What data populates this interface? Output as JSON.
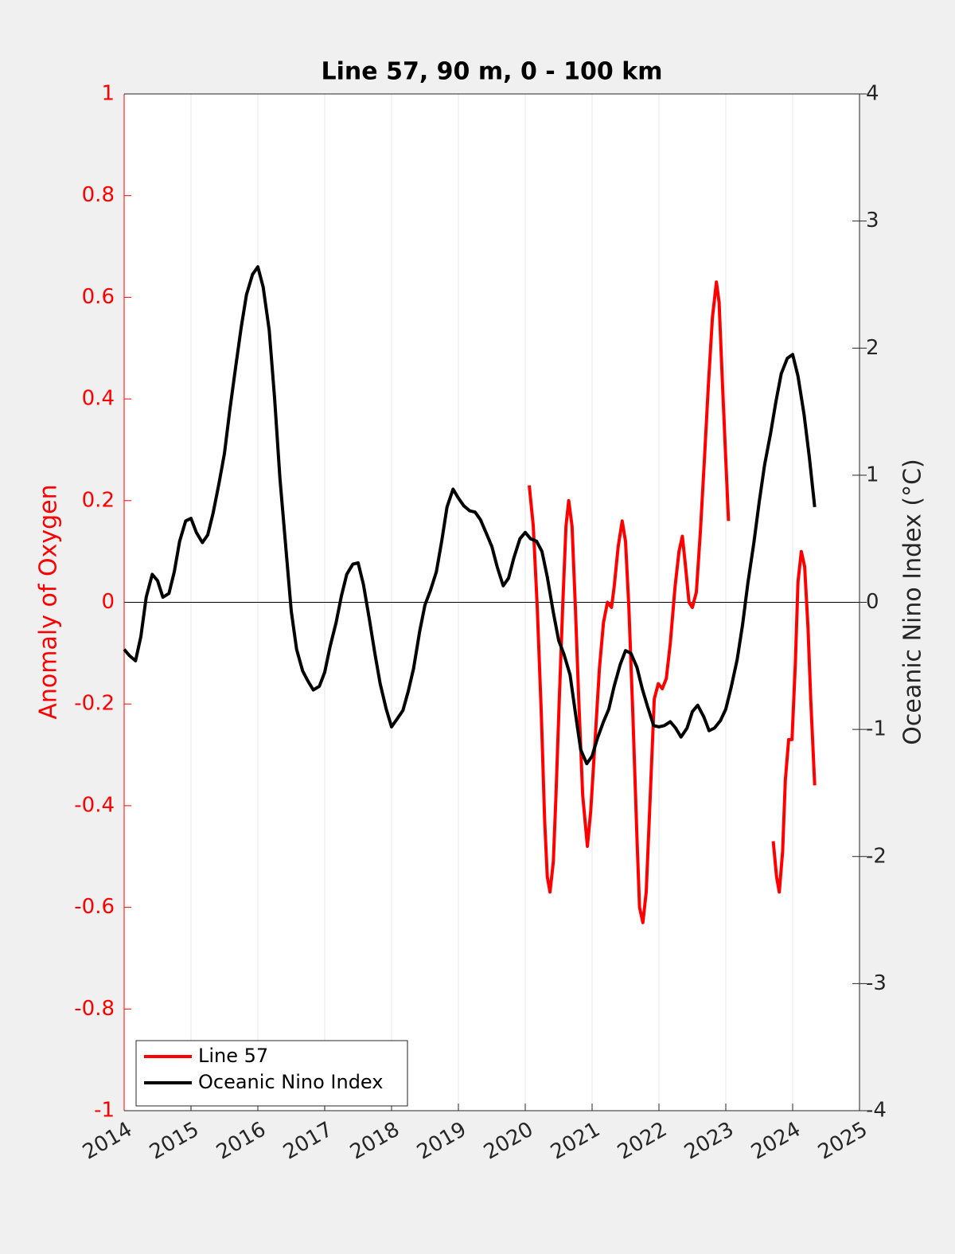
{
  "chart_data": {
    "type": "line",
    "title": "Line 57, 90 m, 0 - 100 km",
    "ylabel": "Anomaly of Oxygen",
    "y2label": "Oceanic Nino Index (°C)",
    "xlim": [
      2014,
      2025
    ],
    "xticks": [
      2014,
      2015,
      2016,
      2017,
      2018,
      2019,
      2020,
      2021,
      2022,
      2023,
      2024,
      2025
    ],
    "ylim": [
      -1,
      1
    ],
    "yticks": [
      -1,
      -0.8,
      -0.6,
      -0.4,
      -0.2,
      0,
      0.2,
      0.4,
      0.6,
      0.8,
      1
    ],
    "y2lim": [
      -4,
      4
    ],
    "y2ticks": [
      -4,
      -3,
      -2,
      -1,
      0,
      1,
      2,
      3,
      4
    ],
    "xgrid": true,
    "reference_line": 0,
    "ylabel_color": "#ff0000",
    "legend": "lower left",
    "series": [
      {
        "name": "Line 57",
        "color": "#ff0000",
        "axis": "y",
        "x": [
          2020.06,
          2020.12,
          2020.18,
          2020.24,
          2020.29,
          2020.33,
          2020.37,
          2020.42,
          2020.46,
          2020.51,
          2020.56,
          2020.61,
          2020.65,
          2020.7,
          2020.75,
          2020.8,
          2020.86,
          2020.93,
          2020.98,
          2021.05,
          2021.11,
          2021.17,
          2021.23,
          2021.29,
          2021.33,
          2021.39,
          2021.45,
          2021.5,
          2021.55,
          2021.61,
          2021.67,
          2021.71,
          2021.76,
          2021.81,
          2021.87,
          2021.93,
          2021.99,
          2022.05,
          2022.11,
          2022.17,
          2022.24,
          2022.3,
          2022.35,
          2022.39,
          2022.45,
          2022.5,
          2022.56,
          2022.62,
          2022.68,
          2022.74,
          2022.8,
          2022.86,
          2022.9,
          2022.95,
          2023.0,
          2023.04,
          2023.4,
          2023.71,
          2023.76,
          2023.8,
          2023.85,
          2023.89,
          2023.94,
          2023.99,
          2024.04,
          2024.08,
          2024.13,
          2024.18,
          2024.23,
          2024.27,
          2024.33
        ],
        "values": [
          0.23,
          0.15,
          -0.01,
          -0.22,
          -0.43,
          -0.54,
          -0.57,
          -0.51,
          -0.38,
          -0.19,
          -0.01,
          0.15,
          0.2,
          0.15,
          -0.01,
          -0.19,
          -0.38,
          -0.48,
          -0.41,
          -0.26,
          -0.13,
          -0.04,
          0.0,
          -0.01,
          0.03,
          0.11,
          0.16,
          0.12,
          -0.01,
          -0.22,
          -0.46,
          -0.6,
          -0.63,
          -0.57,
          -0.38,
          -0.19,
          -0.16,
          -0.17,
          -0.15,
          -0.08,
          0.03,
          0.1,
          0.13,
          0.08,
          0.0,
          -0.01,
          0.02,
          0.14,
          0.28,
          0.43,
          0.56,
          0.63,
          0.59,
          0.43,
          0.28,
          0.16,
          null,
          -0.47,
          -0.54,
          -0.57,
          -0.49,
          -0.35,
          -0.27,
          -0.27,
          -0.12,
          0.04,
          0.1,
          0.07,
          -0.05,
          -0.19,
          -0.36
        ]
      },
      {
        "name": "Oceanic Nino Index",
        "color": "#000000",
        "axis": "y2",
        "x": [
          2014,
          2014.08,
          2014.17,
          2014.25,
          2014.33,
          2014.42,
          2014.5,
          2014.58,
          2014.67,
          2014.75,
          2014.83,
          2014.92,
          2015,
          2015.08,
          2015.17,
          2015.25,
          2015.33,
          2015.42,
          2015.5,
          2015.58,
          2015.67,
          2015.75,
          2015.83,
          2015.92,
          2016,
          2016.08,
          2016.17,
          2016.25,
          2016.33,
          2016.42,
          2016.5,
          2016.58,
          2016.67,
          2016.75,
          2016.83,
          2016.92,
          2017,
          2017.08,
          2017.17,
          2017.25,
          2017.33,
          2017.42,
          2017.5,
          2017.58,
          2017.67,
          2017.75,
          2017.83,
          2017.92,
          2018,
          2018.08,
          2018.17,
          2018.25,
          2018.33,
          2018.42,
          2018.5,
          2018.58,
          2018.67,
          2018.75,
          2018.83,
          2018.92,
          2019,
          2019.08,
          2019.17,
          2019.25,
          2019.33,
          2019.42,
          2019.5,
          2019.58,
          2019.67,
          2019.75,
          2019.83,
          2019.92,
          2020,
          2020.08,
          2020.17,
          2020.25,
          2020.33,
          2020.42,
          2020.5,
          2020.58,
          2020.67,
          2020.75,
          2020.83,
          2020.92,
          2021,
          2021.08,
          2021.17,
          2021.25,
          2021.33,
          2021.42,
          2021.5,
          2021.58,
          2021.67,
          2021.75,
          2021.83,
          2021.92,
          2022,
          2022.08,
          2022.17,
          2022.25,
          2022.33,
          2022.42,
          2022.5,
          2022.58,
          2022.67,
          2022.75,
          2022.83,
          2022.92,
          2023,
          2023.08,
          2023.17,
          2023.25,
          2023.33,
          2023.42,
          2023.5,
          2023.58,
          2023.67,
          2023.75,
          2023.83,
          2023.92,
          2024,
          2024.08,
          2024.17,
          2024.25,
          2024.33
        ],
        "values": [
          -0.37,
          -0.42,
          -0.46,
          -0.27,
          0.04,
          0.22,
          0.17,
          0.04,
          0.07,
          0.24,
          0.48,
          0.64,
          0.66,
          0.55,
          0.47,
          0.53,
          0.7,
          0.94,
          1.17,
          1.51,
          1.86,
          2.16,
          2.42,
          2.58,
          2.64,
          2.48,
          2.14,
          1.61,
          0.98,
          0.42,
          -0.07,
          -0.37,
          -0.54,
          -0.62,
          -0.69,
          -0.66,
          -0.55,
          -0.35,
          -0.16,
          0.05,
          0.22,
          0.3,
          0.31,
          0.14,
          -0.14,
          -0.4,
          -0.64,
          -0.84,
          -0.98,
          -0.92,
          -0.85,
          -0.7,
          -0.52,
          -0.23,
          -0.02,
          0.09,
          0.24,
          0.48,
          0.75,
          0.89,
          0.82,
          0.76,
          0.72,
          0.71,
          0.65,
          0.54,
          0.44,
          0.28,
          0.13,
          0.19,
          0.35,
          0.5,
          0.55,
          0.5,
          0.48,
          0.4,
          0.2,
          -0.08,
          -0.3,
          -0.41,
          -0.57,
          -0.87,
          -1.16,
          -1.27,
          -1.21,
          -1.07,
          -0.94,
          -0.84,
          -0.66,
          -0.49,
          -0.38,
          -0.4,
          -0.51,
          -0.68,
          -0.82,
          -0.97,
          -0.98,
          -0.97,
          -0.94,
          -0.99,
          -1.06,
          -0.99,
          -0.86,
          -0.81,
          -0.9,
          -1.01,
          -0.99,
          -0.93,
          -0.84,
          -0.67,
          -0.45,
          -0.18,
          0.15,
          0.47,
          0.79,
          1.08,
          1.33,
          1.58,
          1.8,
          1.92,
          1.95,
          1.78,
          1.48,
          1.14,
          0.75
        ]
      }
    ]
  }
}
